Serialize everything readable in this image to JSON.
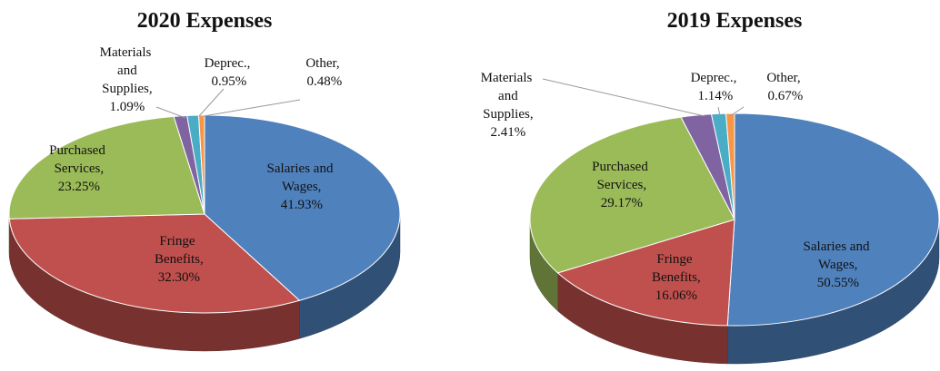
{
  "chart_data": [
    {
      "type": "pie",
      "title": "2020 Expenses",
      "values": [
        41.93,
        32.3,
        23.25,
        1.09,
        0.95,
        0.48
      ],
      "value_labels": [
        "Salaries and Wages, 41.93%",
        "Fringe Benefits, 32.30%",
        "Purchased Services, 23.25%",
        "Materials and Supplies, 1.09%",
        "Deprec., 0.95%",
        "Other, 0.48%"
      ],
      "colors": [
        "#4f81bd",
        "#c0504d",
        "#9bbb59",
        "#8064a2",
        "#4bacc6",
        "#f79646"
      ]
    },
    {
      "type": "pie",
      "title": "2019 Expenses",
      "values": [
        50.55,
        16.06,
        29.17,
        2.41,
        1.14,
        0.67
      ],
      "value_labels": [
        "Salaries and Wages, 50.55%",
        "Fringe Benefits, 16.06%",
        "Purchased Services, 29.17%",
        "Materials and Supplies, 2.41%",
        "Deprec., 1.14%",
        "Other, 0.67%"
      ],
      "colors": [
        "#4f81bd",
        "#c0504d",
        "#9bbb59",
        "#8064a2",
        "#4bacc6",
        "#f79646"
      ]
    }
  ]
}
